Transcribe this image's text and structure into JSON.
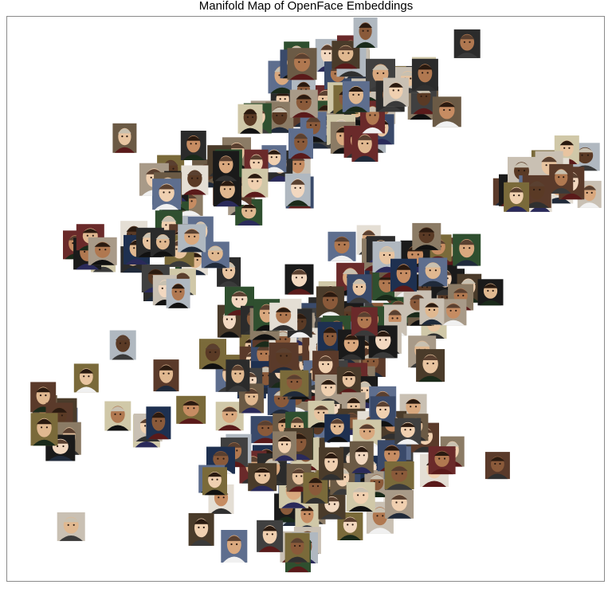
{
  "chart_data": {
    "type": "scatter",
    "title": "Manifold Map of OpenFace Embeddings",
    "xlabel": "",
    "ylabel": "",
    "xlim": [
      0,
      100
    ],
    "ylim": [
      0,
      100
    ],
    "grid": false,
    "legend": "none",
    "marker": "face-thumbnail",
    "clusters": [
      {
        "cx": 58,
        "cy": 86,
        "sx": 10,
        "sy": 6,
        "n": 62
      },
      {
        "cx": 36,
        "cy": 72,
        "sx": 8,
        "sy": 4,
        "n": 30
      },
      {
        "cx": 24,
        "cy": 59,
        "sx": 7,
        "sy": 5,
        "n": 26
      },
      {
        "cx": 91,
        "cy": 71,
        "sx": 6,
        "sy": 4,
        "n": 18
      },
      {
        "cx": 66,
        "cy": 52,
        "sx": 9,
        "sy": 6,
        "n": 45
      },
      {
        "cx": 49,
        "cy": 40,
        "sx": 13,
        "sy": 7,
        "n": 95
      },
      {
        "cx": 52,
        "cy": 20,
        "sx": 16,
        "sy": 7,
        "n": 80
      },
      {
        "cx": 8,
        "cy": 31,
        "sx": 4,
        "sy": 3,
        "n": 10
      },
      {
        "cx": 50,
        "cy": 5,
        "sx": 2,
        "sy": 2,
        "n": 4
      }
    ]
  }
}
